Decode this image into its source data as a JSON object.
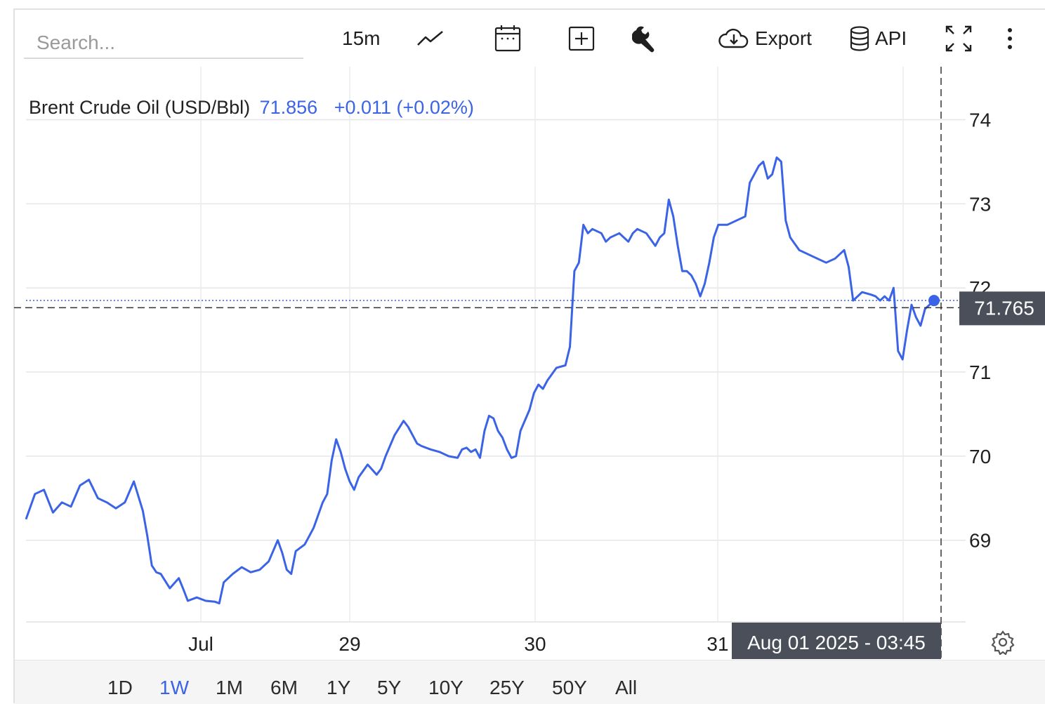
{
  "toolbar": {
    "search_placeholder": "Search...",
    "interval": "15m",
    "export_label": "Export",
    "api_label": "API"
  },
  "legend": {
    "name": "Brent Crude Oil (USD/Bbl)",
    "value": "71.856",
    "change": "+0.011 (+0.02%)"
  },
  "price_label": "71.765",
  "crosshair_time": "Aug 01 2025 - 03:45",
  "ranges": [
    "1D",
    "1W",
    "1M",
    "6M",
    "1Y",
    "5Y",
    "10Y",
    "25Y",
    "50Y",
    "All"
  ],
  "active_range": "1W",
  "colors": {
    "line": "#3b63e6",
    "price_tag": "#4a4f5a",
    "active": "#3b63e6"
  },
  "chart_data": {
    "type": "line",
    "title": "Brent Crude Oil (USD/Bbl)",
    "x_tick_labels": [
      "Jul",
      "29",
      "30",
      "31"
    ],
    "y_ticks": [
      69,
      70,
      71,
      72,
      73,
      74
    ],
    "ylim": [
      68.03,
      74.63
    ],
    "grid": true,
    "series": [
      {
        "name": "Brent Crude Oil (USD/Bbl)",
        "points": [
          [
            0.0,
            69.25
          ],
          [
            0.01,
            69.55
          ],
          [
            0.02,
            69.6
          ],
          [
            0.03,
            69.33
          ],
          [
            0.04,
            69.45
          ],
          [
            0.05,
            69.4
          ],
          [
            0.06,
            69.65
          ],
          [
            0.07,
            69.72
          ],
          [
            0.08,
            69.5
          ],
          [
            0.09,
            69.45
          ],
          [
            0.1,
            69.38
          ],
          [
            0.11,
            69.45
          ],
          [
            0.12,
            69.7
          ],
          [
            0.13,
            69.35
          ],
          [
            0.135,
            69.05
          ],
          [
            0.14,
            68.7
          ],
          [
            0.145,
            68.62
          ],
          [
            0.15,
            68.6
          ],
          [
            0.16,
            68.43
          ],
          [
            0.17,
            68.55
          ],
          [
            0.175,
            68.42
          ],
          [
            0.18,
            68.28
          ],
          [
            0.19,
            68.32
          ],
          [
            0.2,
            68.28
          ],
          [
            0.21,
            68.27
          ],
          [
            0.215,
            68.25
          ],
          [
            0.22,
            68.5
          ],
          [
            0.23,
            68.6
          ],
          [
            0.24,
            68.68
          ],
          [
            0.25,
            68.62
          ],
          [
            0.26,
            68.65
          ],
          [
            0.27,
            68.75
          ],
          [
            0.28,
            69.0
          ],
          [
            0.285,
            68.85
          ],
          [
            0.29,
            68.65
          ],
          [
            0.295,
            68.6
          ],
          [
            0.3,
            68.87
          ],
          [
            0.31,
            68.95
          ],
          [
            0.315,
            69.05
          ],
          [
            0.32,
            69.15
          ],
          [
            0.33,
            69.45
          ],
          [
            0.335,
            69.55
          ],
          [
            0.34,
            69.95
          ],
          [
            0.345,
            70.2
          ],
          [
            0.35,
            70.05
          ],
          [
            0.355,
            69.85
          ],
          [
            0.36,
            69.7
          ],
          [
            0.365,
            69.6
          ],
          [
            0.37,
            69.75
          ],
          [
            0.38,
            69.9
          ],
          [
            0.39,
            69.78
          ],
          [
            0.395,
            69.85
          ],
          [
            0.4,
            70.0
          ],
          [
            0.41,
            70.25
          ],
          [
            0.42,
            70.42
          ],
          [
            0.425,
            70.35
          ],
          [
            0.43,
            70.25
          ],
          [
            0.435,
            70.15
          ],
          [
            0.44,
            70.12
          ],
          [
            0.45,
            70.08
          ],
          [
            0.46,
            70.05
          ],
          [
            0.47,
            70.0
          ],
          [
            0.48,
            69.98
          ],
          [
            0.485,
            70.08
          ],
          [
            0.49,
            70.1
          ],
          [
            0.495,
            70.05
          ],
          [
            0.5,
            70.08
          ],
          [
            0.505,
            69.98
          ],
          [
            0.51,
            70.3
          ],
          [
            0.515,
            70.48
          ],
          [
            0.52,
            70.45
          ],
          [
            0.525,
            70.3
          ],
          [
            0.53,
            70.22
          ],
          [
            0.535,
            70.08
          ],
          [
            0.54,
            69.98
          ],
          [
            0.545,
            70.0
          ],
          [
            0.55,
            70.3
          ],
          [
            0.56,
            70.55
          ],
          [
            0.565,
            70.75
          ],
          [
            0.57,
            70.85
          ],
          [
            0.575,
            70.8
          ],
          [
            0.58,
            70.9
          ],
          [
            0.59,
            71.05
          ],
          [
            0.6,
            71.08
          ],
          [
            0.605,
            71.3
          ],
          [
            0.61,
            72.2
          ],
          [
            0.615,
            72.3
          ],
          [
            0.62,
            72.75
          ],
          [
            0.625,
            72.65
          ],
          [
            0.63,
            72.7
          ],
          [
            0.64,
            72.65
          ],
          [
            0.645,
            72.55
          ],
          [
            0.65,
            72.6
          ],
          [
            0.66,
            72.65
          ],
          [
            0.67,
            72.55
          ],
          [
            0.675,
            72.65
          ],
          [
            0.68,
            72.7
          ],
          [
            0.69,
            72.65
          ],
          [
            0.7,
            72.5
          ],
          [
            0.705,
            72.6
          ],
          [
            0.71,
            72.65
          ],
          [
            0.715,
            73.05
          ],
          [
            0.72,
            72.85
          ],
          [
            0.725,
            72.5
          ],
          [
            0.73,
            72.2
          ],
          [
            0.735,
            72.2
          ],
          [
            0.74,
            72.15
          ],
          [
            0.745,
            72.05
          ],
          [
            0.75,
            71.9
          ],
          [
            0.755,
            72.05
          ],
          [
            0.76,
            72.3
          ],
          [
            0.765,
            72.6
          ],
          [
            0.77,
            72.75
          ],
          [
            0.78,
            72.75
          ],
          [
            0.79,
            72.8
          ],
          [
            0.8,
            72.85
          ],
          [
            0.805,
            73.25
          ],
          [
            0.81,
            73.35
          ],
          [
            0.815,
            73.45
          ],
          [
            0.82,
            73.5
          ],
          [
            0.825,
            73.3
          ],
          [
            0.83,
            73.35
          ],
          [
            0.835,
            73.55
          ],
          [
            0.84,
            73.5
          ],
          [
            0.845,
            72.8
          ],
          [
            0.85,
            72.6
          ],
          [
            0.86,
            72.45
          ],
          [
            0.87,
            72.4
          ],
          [
            0.88,
            72.35
          ],
          [
            0.89,
            72.3
          ],
          [
            0.9,
            72.35
          ],
          [
            0.91,
            72.45
          ],
          [
            0.915,
            72.25
          ],
          [
            0.92,
            71.85
          ],
          [
            0.93,
            71.95
          ],
          [
            0.94,
            71.92
          ],
          [
            0.945,
            71.9
          ],
          [
            0.95,
            71.85
          ],
          [
            0.955,
            71.9
          ],
          [
            0.96,
            71.85
          ],
          [
            0.965,
            72.0
          ],
          [
            0.97,
            71.25
          ],
          [
            0.975,
            71.15
          ],
          [
            0.98,
            71.5
          ],
          [
            0.985,
            71.8
          ],
          [
            0.99,
            71.65
          ],
          [
            0.995,
            71.55
          ],
          [
            1.0,
            71.75
          ],
          [
            1.01,
            71.85
          ]
        ]
      }
    ],
    "last_value": 71.765
  }
}
